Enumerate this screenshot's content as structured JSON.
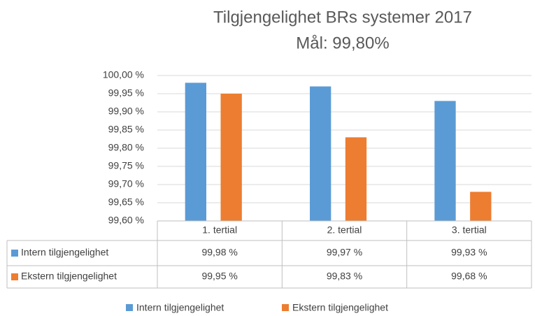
{
  "chart_data": {
    "type": "bar",
    "title": "Tilgjengelighet BRs systemer 2017",
    "subtitle": "Mål: 99,80%",
    "categories": [
      "1. tertial",
      "2. tertial",
      "3. tertial"
    ],
    "series": [
      {
        "name": "Intern tilgjengelighet",
        "color": "#5b9bd5",
        "values": [
          99.98,
          99.97,
          99.93
        ],
        "value_labels": [
          "99,98 %",
          "99,97 %",
          "99,93 %"
        ]
      },
      {
        "name": "Ekstern tilgjengelighet",
        "color": "#ed7d31",
        "values": [
          99.95,
          99.83,
          99.68
        ],
        "value_labels": [
          "99,95 %",
          "99,83 %",
          "99,68 %"
        ]
      }
    ],
    "ylim": [
      99.6,
      100
    ],
    "yticks": [
      {
        "value": 99.6,
        "label": "99,60 %"
      },
      {
        "value": 99.65,
        "label": "99,65 %"
      },
      {
        "value": 99.7,
        "label": "99,70 %"
      },
      {
        "value": 99.75,
        "label": "99,75 %"
      },
      {
        "value": 99.8,
        "label": "99,80 %"
      },
      {
        "value": 99.85,
        "label": "99,85 %"
      },
      {
        "value": 99.9,
        "label": "99,90 %"
      },
      {
        "value": 99.95,
        "label": "99,95 %"
      },
      {
        "value": 100,
        "label": "100,00 %"
      }
    ],
    "grid": true
  }
}
